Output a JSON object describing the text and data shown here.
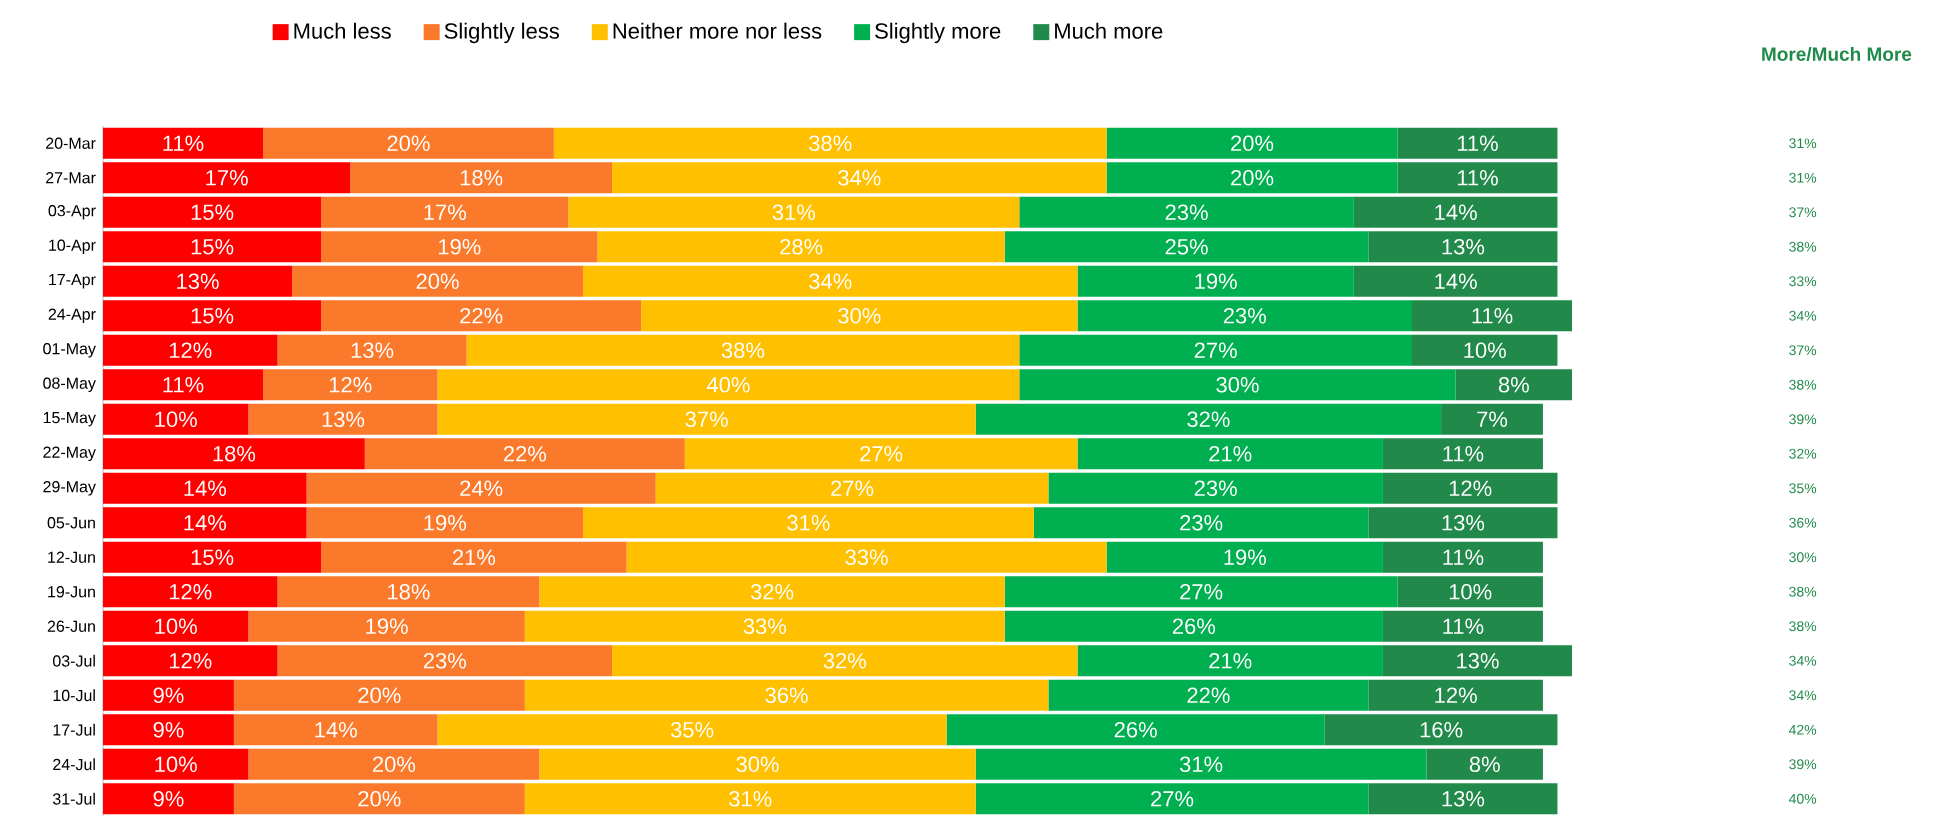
{
  "chart_data": {
    "type": "bar",
    "orientation": "horizontal",
    "stacked": true,
    "legend": "top",
    "tick_labels": "y",
    "categories": [
      "20-Mar",
      "27-Mar",
      "03-Apr",
      "10-Apr",
      "17-Apr",
      "24-Apr",
      "01-May",
      "08-May",
      "15-May",
      "22-May",
      "29-May",
      "05-Jun",
      "12-Jun",
      "19-Jun",
      "26-Jun",
      "03-Jul",
      "10-Jul",
      "17-Jul",
      "24-Jul",
      "31-Jul"
    ],
    "series": [
      {
        "name": "Much less",
        "color": "#ff0000",
        "values": [
          11,
          17,
          15,
          15,
          13,
          15,
          12,
          11,
          10,
          18,
          14,
          14,
          15,
          12,
          10,
          12,
          9,
          9,
          10,
          9
        ],
        "value_labels": [
          "11%",
          "17%",
          "15%",
          "15%",
          "13%",
          "15%",
          "12%",
          "11%",
          "10%",
          "18%",
          "14%",
          "14%",
          "15%",
          "12%",
          "10%",
          "12%",
          "9%",
          "9%",
          "10%",
          "9%"
        ]
      },
      {
        "name": "Slightly less",
        "color": "#fb792b",
        "values": [
          20,
          18,
          17,
          19,
          20,
          22,
          13,
          12,
          13,
          22,
          24,
          19,
          21,
          18,
          19,
          23,
          20,
          14,
          20,
          20
        ],
        "value_labels": [
          "20%",
          "18%",
          "17%",
          "19%",
          "20%",
          "22%",
          "13%",
          "12%",
          "13%",
          "22%",
          "24%",
          "19%",
          "21%",
          "18%",
          "19%",
          "23%",
          "20%",
          "14%",
          "20%",
          "20%"
        ]
      },
      {
        "name": "Neither more nor less",
        "color": "#ffc000",
        "values": [
          38,
          34,
          31,
          28,
          34,
          30,
          38,
          40,
          37,
          27,
          27,
          31,
          33,
          32,
          33,
          32,
          36,
          35,
          30,
          31
        ],
        "value_labels": [
          "38%",
          "34%",
          "31%",
          "28%",
          "34%",
          "30%",
          "38%",
          "40%",
          "37%",
          "27%",
          "27%",
          "31%",
          "33%",
          "32%",
          "33%",
          "32%",
          "36%",
          "35%",
          "30%",
          "31%"
        ]
      },
      {
        "name": "Slightly more",
        "color": "#00b050",
        "values": [
          20,
          20,
          23,
          25,
          19,
          23,
          27,
          30,
          32,
          21,
          23,
          23,
          19,
          27,
          26,
          21,
          22,
          26,
          31,
          27
        ],
        "value_labels": [
          "20%",
          "20%",
          "23%",
          "25%",
          "19%",
          "23%",
          "27%",
          "30%",
          "32%",
          "21%",
          "23%",
          "23%",
          "19%",
          "27%",
          "26%",
          "21%",
          "22%",
          "26%",
          "31%",
          "27%"
        ]
      },
      {
        "name": "Much more",
        "color": "#218a4a",
        "values": [
          11,
          11,
          14,
          13,
          14,
          11,
          10,
          8,
          7,
          11,
          12,
          13,
          11,
          10,
          11,
          13,
          12,
          16,
          8,
          13
        ],
        "value_labels": [
          "11%",
          "11%",
          "14%",
          "13%",
          "14%",
          "11%",
          "10%",
          "8%",
          "7%",
          "11%",
          "12%",
          "13%",
          "11%",
          "10%",
          "11%",
          "13%",
          "12%",
          "16%",
          "8%",
          "13%"
        ]
      }
    ],
    "annotations": [
      "More/Much More",
      "31%",
      "31%",
      "37%",
      "38%",
      "33%",
      "34%",
      "37%",
      "38%",
      "39%",
      "32%",
      "35%",
      "36%",
      "30%",
      "38%",
      "38%",
      "34%",
      "34%",
      "42%",
      "39%",
      "40%"
    ]
  }
}
